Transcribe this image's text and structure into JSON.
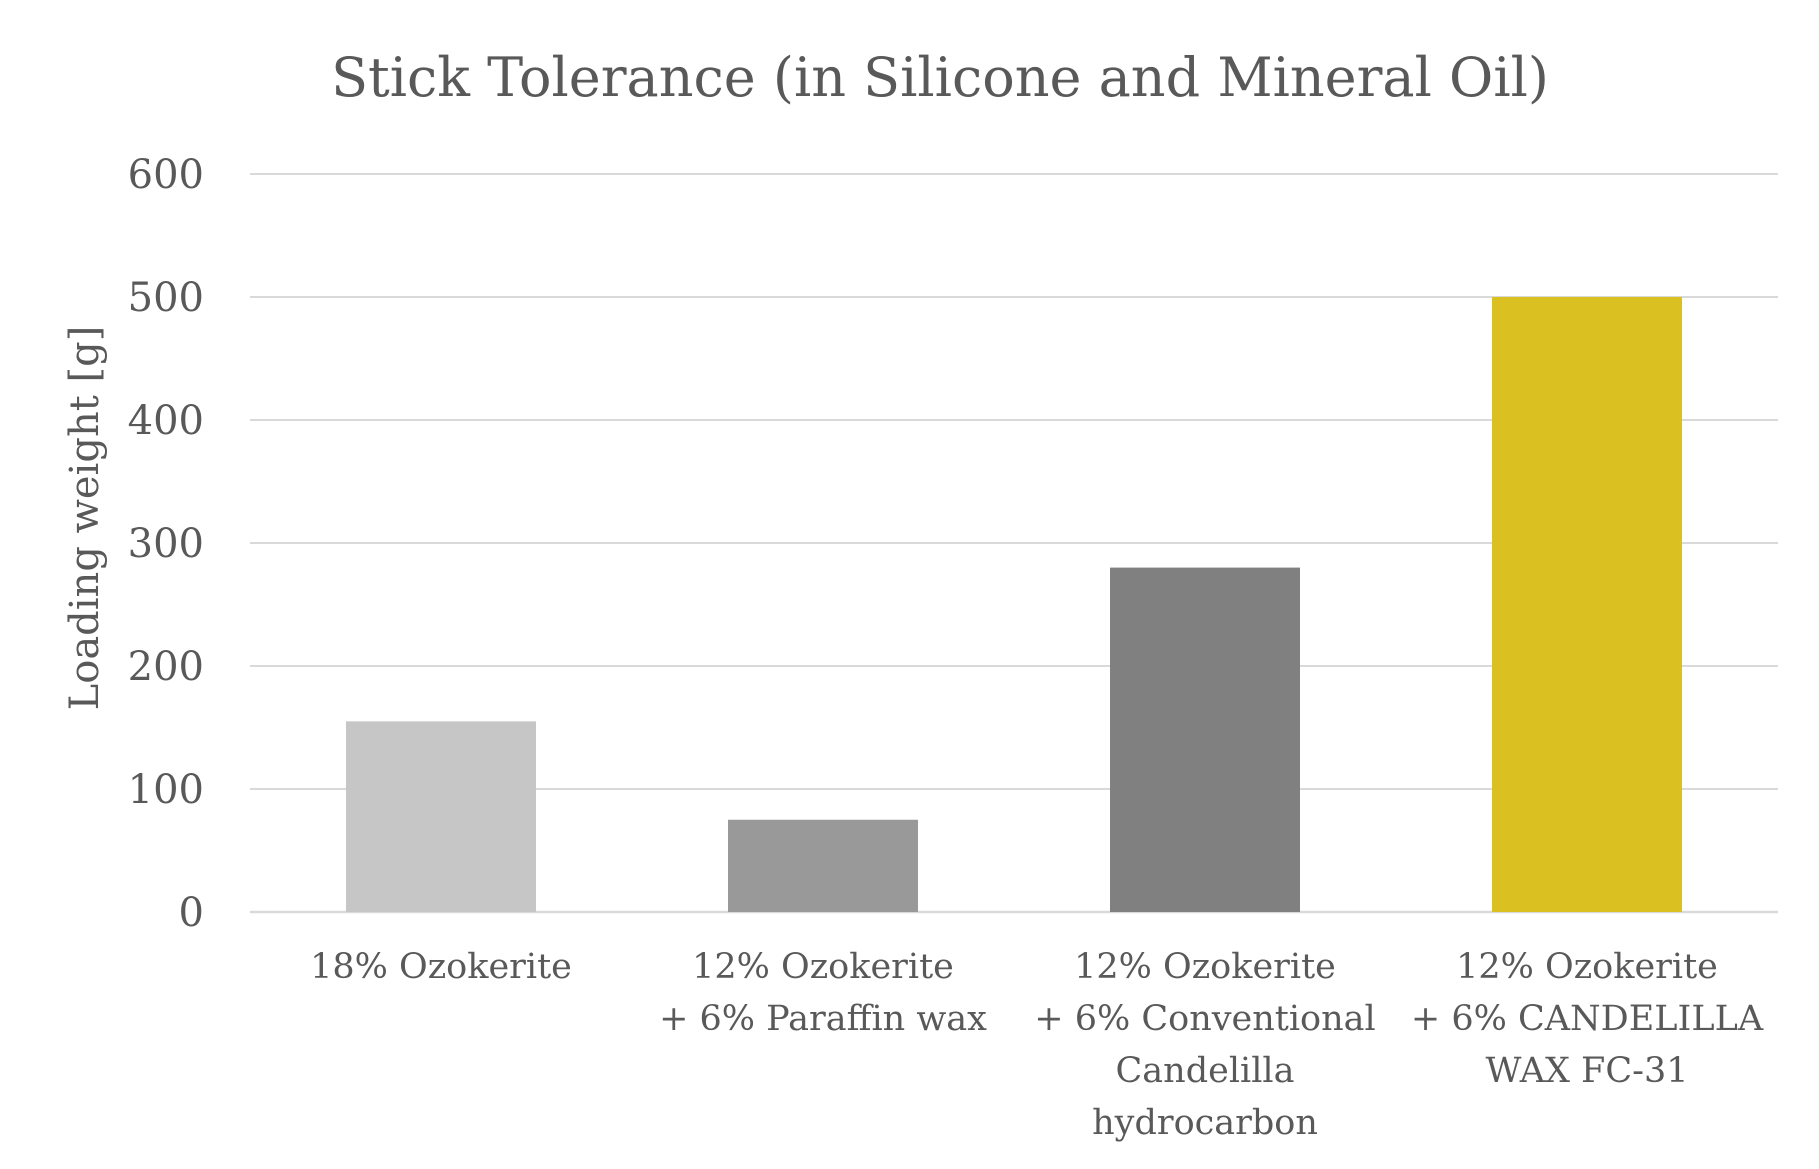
{
  "chart_data": {
    "type": "bar",
    "title": "Stick Tolerance (in Silicone and Mineral Oil)",
    "xlabel": "",
    "ylabel": "Loading weight [g]",
    "ylim": [
      0,
      600
    ],
    "yticks": [
      0,
      100,
      200,
      300,
      400,
      500,
      600
    ],
    "grid": true,
    "legend": "none",
    "categories": [
      [
        "18% Ozokerite"
      ],
      [
        "12% Ozokerite",
        "+ 6% Paraffin wax"
      ],
      [
        "12% Ozokerite",
        "+ 6% Conventional",
        "Candelilla",
        "hydrocarbon"
      ],
      [
        "12% Ozokerite",
        "+ 6% CANDELILLA",
        "WAX FC-31"
      ]
    ],
    "values": [
      155,
      75,
      280,
      500
    ],
    "colors": [
      "#c6c6c6",
      "#999999",
      "#808080",
      "#dbc021"
    ]
  }
}
